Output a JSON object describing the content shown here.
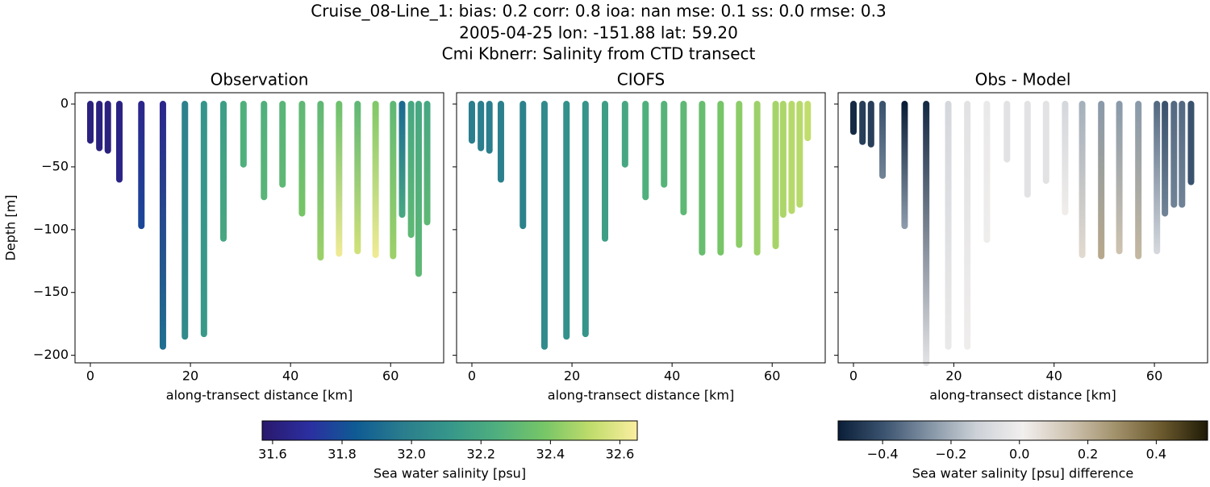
{
  "header": {
    "title_lines": [
      "Cruise_08-Line_1: bias: 0.2  corr: 0.8  ioa: nan  mse: 0.1  ss: 0.0  rmse: 0.3",
      "2005-04-25 lon: -151.88 lat: 59.20",
      "Cmi Kbnerr: Salinity from CTD transect"
    ]
  },
  "chart_data": [
    {
      "type": "transect",
      "title": "Observation",
      "xlabel": "along-transect distance [km]",
      "ylabel": "Depth [m]",
      "colorbar": 0,
      "xlim": [
        -3.06,
        70.6
      ],
      "xticks": [
        0,
        20,
        40,
        60
      ],
      "ylim": [
        -206,
        9
      ],
      "yticks": [
        {
          "value": 0,
          "label": "0"
        },
        {
          "value": -50,
          "label": "−50"
        },
        {
          "value": -100,
          "label": "−100"
        },
        {
          "value": -150,
          "label": "−150"
        },
        {
          "value": -200,
          "label": "−200"
        }
      ],
      "x": [
        0,
        1.8,
        3.5,
        5.8,
        10.2,
        14.5,
        18.9,
        22.7,
        26.6,
        30.6,
        34.7,
        38.4,
        42.3,
        46,
        49.7,
        53.4,
        57,
        60.5,
        62.3,
        64.1,
        65.6,
        67.3
      ],
      "depth": [
        -29,
        -35,
        -37,
        -60,
        -97,
        -193,
        -185,
        -183,
        -107,
        -48,
        -74,
        -64,
        -87,
        -122,
        -119,
        -117,
        -120,
        -121,
        -88,
        -104,
        -135,
        -94
      ],
      "top": [
        31.62,
        31.62,
        31.62,
        31.63,
        31.65,
        31.65,
        32.0,
        32.1,
        32.15,
        32.25,
        32.25,
        32.28,
        32.3,
        32.3,
        32.35,
        32.3,
        32.4,
        32.3,
        31.9,
        32.2,
        32.2,
        32.2
      ],
      "bottom": [
        31.62,
        31.62,
        31.62,
        31.64,
        31.78,
        31.92,
        32.05,
        32.12,
        32.2,
        32.25,
        32.28,
        32.3,
        32.38,
        32.45,
        32.62,
        32.55,
        32.62,
        32.45,
        32.2,
        32.3,
        32.3,
        32.3
      ]
    },
    {
      "type": "transect",
      "title": "CIOFS",
      "xlabel": "along-transect distance [km]",
      "colorbar": 0,
      "xlim": [
        -3.06,
        70.6
      ],
      "xticks": [
        0,
        20,
        40,
        60
      ],
      "x": [
        0,
        1.8,
        3.5,
        5.8,
        10.2,
        14.5,
        18.9,
        22.7,
        26.6,
        30.6,
        34.7,
        38.4,
        42.3,
        46,
        49.7,
        53.4,
        57,
        60.7,
        62.2,
        63.9,
        65.5,
        67.1
      ],
      "depth": [
        -29,
        -35,
        -37,
        -60,
        -97,
        -193,
        -185,
        -183,
        -107,
        -48,
        -74,
        -64,
        -86,
        -118,
        -118,
        -112,
        -118,
        -113,
        -88,
        -85,
        -80,
        -27
      ],
      "top": [
        31.98,
        31.98,
        31.98,
        31.99,
        32.0,
        32.05,
        32.08,
        32.1,
        32.15,
        32.2,
        32.25,
        32.27,
        32.3,
        32.33,
        32.38,
        32.42,
        32.45,
        32.47,
        32.48,
        32.5,
        32.5,
        32.52
      ],
      "bottom": [
        31.98,
        31.98,
        31.98,
        31.99,
        32.0,
        32.05,
        32.08,
        32.1,
        32.15,
        32.2,
        32.25,
        32.27,
        32.3,
        32.33,
        32.38,
        32.42,
        32.45,
        32.47,
        32.48,
        32.5,
        32.5,
        32.52
      ]
    },
    {
      "type": "transect",
      "title": "Obs - Model",
      "xlabel": "along-transect distance [km]",
      "colorbar": 1,
      "xlim": [
        -3.06,
        70.6
      ],
      "xticks": [
        0,
        20,
        40,
        60
      ],
      "x": [
        0,
        1.8,
        3.5,
        5.8,
        10.2,
        14.5,
        18.9,
        22.7,
        26.6,
        30.6,
        34.7,
        38.4,
        42.2,
        45.6,
        49.4,
        53,
        56.8,
        60.5,
        62.1,
        63.9,
        65.5,
        67.3
      ],
      "depth": [
        -22,
        -30,
        -32,
        -57,
        -97,
        -206,
        -193,
        -193,
        -108,
        -44,
        -72,
        -61,
        -86,
        -120,
        -121,
        -117,
        -121,
        -117,
        -87,
        -80,
        -80,
        -62
      ],
      "top": [
        -0.5,
        -0.45,
        -0.45,
        -0.4,
        -0.55,
        -0.5,
        -0.1,
        -0.05,
        -0.02,
        -0.05,
        -0.05,
        -0.05,
        -0.1,
        -0.2,
        -0.25,
        -0.25,
        -0.25,
        -0.35,
        -0.4,
        -0.35,
        -0.35,
        -0.4
      ],
      "bottom": [
        -0.5,
        -0.45,
        -0.45,
        -0.3,
        -0.25,
        -0.05,
        -0.02,
        0.0,
        0.0,
        -0.05,
        -0.05,
        -0.05,
        0.02,
        0.08,
        0.22,
        0.15,
        0.18,
        -0.1,
        -0.3,
        -0.3,
        -0.3,
        -0.4
      ]
    }
  ],
  "colorbars": [
    {
      "label": "Sea water salinity [psu]",
      "lim": [
        31.57,
        32.65
      ],
      "ticks": [
        31.6,
        31.8,
        {
          "value": 32.0,
          "label": "32.0"
        },
        32.2,
        32.4,
        32.6
      ],
      "colors": [
        "#2a186c",
        "#2b2fa0",
        "#0f5b94",
        "#2a7d8d",
        "#36978a",
        "#4faf7e",
        "#76c567",
        "#bfdc6b",
        "#fbeea0"
      ]
    },
    {
      "label": "Sea water salinity [psu] difference",
      "lim": [
        -0.53,
        0.55
      ],
      "ticks": [
        {
          "value": -0.4,
          "label": "−0.4"
        },
        {
          "value": -0.2,
          "label": "−0.2"
        },
        {
          "value": 0,
          "label": "0.0"
        },
        0.2,
        0.4
      ],
      "colors": [
        "#0a1e38",
        "#3c5470",
        "#8595a6",
        "#cdd2d8",
        "#f2efee",
        "#cfc4b2",
        "#a2926c",
        "#6c5a2e",
        "#1e1a06"
      ]
    }
  ]
}
